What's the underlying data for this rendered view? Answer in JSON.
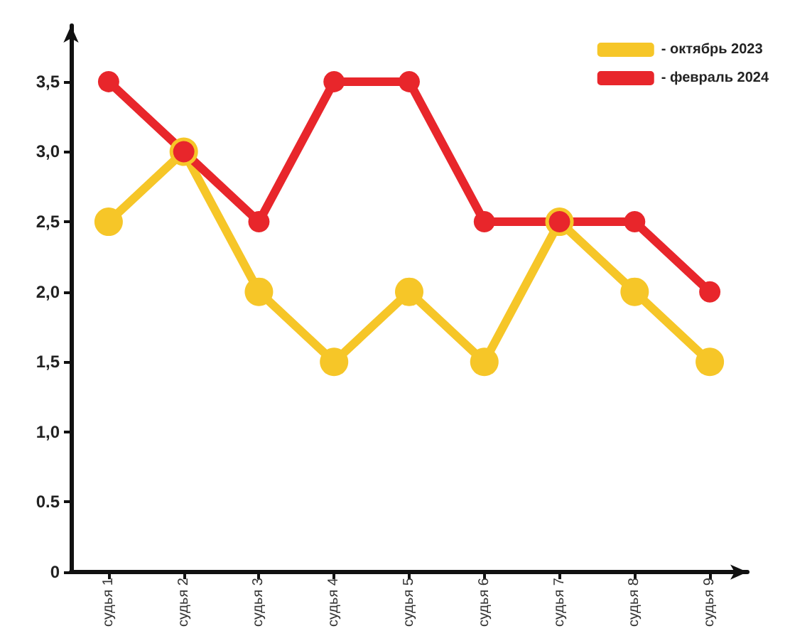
{
  "chart_data": {
    "type": "line",
    "categories": [
      "судья 1",
      "судья 2",
      "судья 3",
      "судья 4",
      "судья 5",
      "судья 6",
      "судья 7",
      "судья 8",
      "судья 9"
    ],
    "series": [
      {
        "name": "- октябрь 2023",
        "color": "#f6c628",
        "values": [
          2.5,
          3,
          2,
          1.5,
          2,
          1.5,
          2.5,
          2,
          1.5
        ]
      },
      {
        "name": "- февраль 2024",
        "color": "#e8262b",
        "values": [
          3.5,
          3,
          2.5,
          3.5,
          3.5,
          2.5,
          2.5,
          2.5,
          2
        ]
      }
    ],
    "ylim": [
      0,
      3.9
    ],
    "yticks": [
      {
        "value": 0,
        "label": "0"
      },
      {
        "value": 0.5,
        "label": "0.5"
      },
      {
        "value": 1,
        "label": "1,0"
      },
      {
        "value": 1.5,
        "label": "1,5"
      },
      {
        "value": 2,
        "label": "2,0"
      },
      {
        "value": 2.5,
        "label": "2,5"
      },
      {
        "value": 3,
        "label": "3,0"
      },
      {
        "value": 3.5,
        "label": "3,5"
      }
    ],
    "grid": false,
    "legend": "top right",
    "marker": "circle",
    "line_style": "solid"
  }
}
